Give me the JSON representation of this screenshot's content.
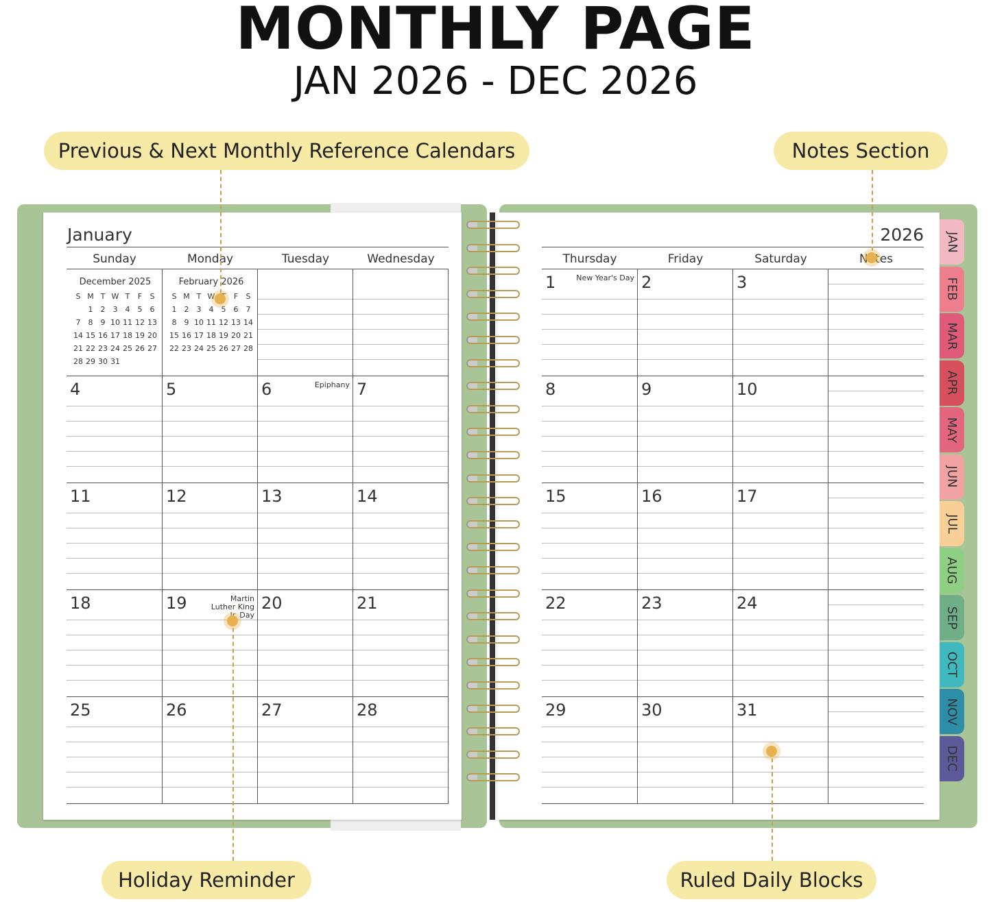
{
  "header": {
    "title": "MONTHLY PAGE",
    "subtitle": "JAN 2026 - DEC 2026"
  },
  "callouts": {
    "reference": "Previous & Next Monthly Reference Calendars",
    "notes": "Notes Section",
    "holiday": "Holiday Reminder",
    "ruled": "Ruled Daily Blocks"
  },
  "colors": {
    "cover": "#a9c598",
    "callout": "#f7eaa6",
    "marker": "#e8b14f"
  },
  "left_page": {
    "month": "January",
    "days": [
      "Sunday",
      "Monday",
      "Tuesday",
      "Wednesday"
    ],
    "mini_calendars": [
      {
        "title": "December 2025",
        "weekdays": [
          "S",
          "M",
          "T",
          "W",
          "T",
          "F",
          "S"
        ],
        "weeks": [
          [
            "",
            "1",
            "2",
            "3",
            "4",
            "5",
            "6"
          ],
          [
            "7",
            "8",
            "9",
            "10",
            "11",
            "12",
            "13"
          ],
          [
            "14",
            "15",
            "16",
            "17",
            "18",
            "19",
            "20"
          ],
          [
            "21",
            "22",
            "23",
            "24",
            "25",
            "26",
            "27"
          ],
          [
            "28",
            "29",
            "30",
            "31",
            "",
            "",
            ""
          ]
        ]
      },
      {
        "title": "February 2026",
        "weekdays": [
          "S",
          "M",
          "T",
          "W",
          "T",
          "F",
          "S"
        ],
        "weeks": [
          [
            "1",
            "2",
            "3",
            "4",
            "5",
            "6",
            "7"
          ],
          [
            "8",
            "9",
            "10",
            "11",
            "12",
            "13",
            "14"
          ],
          [
            "15",
            "16",
            "17",
            "18",
            "19",
            "20",
            "21"
          ],
          [
            "22",
            "23",
            "24",
            "25",
            "26",
            "27",
            "28"
          ]
        ]
      }
    ],
    "weeks": [
      [
        "4",
        "5",
        "6",
        "7"
      ],
      [
        "11",
        "12",
        "13",
        "14"
      ],
      [
        "18",
        "19",
        "20",
        "21"
      ],
      [
        "25",
        "26",
        "27",
        "28"
      ]
    ]
  },
  "right_page": {
    "year": "2026",
    "days": [
      "Thursday",
      "Friday",
      "Saturday"
    ],
    "notes_label": "Notes",
    "weeks": [
      [
        "1",
        "2",
        "3"
      ],
      [
        "8",
        "9",
        "10"
      ],
      [
        "15",
        "16",
        "17"
      ],
      [
        "22",
        "23",
        "24"
      ],
      [
        "29",
        "30",
        "31"
      ]
    ]
  },
  "holidays": {
    "1": "New Year's Day",
    "6": "Epiphany",
    "19": "Martin Luther King Jr. Day"
  },
  "tabs": [
    {
      "label": "JAN",
      "color": "#f2b8c4"
    },
    {
      "label": "FEB",
      "color": "#ee7d8e"
    },
    {
      "label": "MAR",
      "color": "#e05a7a"
    },
    {
      "label": "APR",
      "color": "#d64f5c"
    },
    {
      "label": "MAY",
      "color": "#e4667e"
    },
    {
      "label": "JUN",
      "color": "#f0a3a2"
    },
    {
      "label": "JUL",
      "color": "#f8cf96"
    },
    {
      "label": "AUG",
      "color": "#8fcf83"
    },
    {
      "label": "SEP",
      "color": "#6fae86"
    },
    {
      "label": "OCT",
      "color": "#3fb8be"
    },
    {
      "label": "NOV",
      "color": "#2f8ea7"
    },
    {
      "label": "DEC",
      "color": "#5c5a99"
    }
  ]
}
